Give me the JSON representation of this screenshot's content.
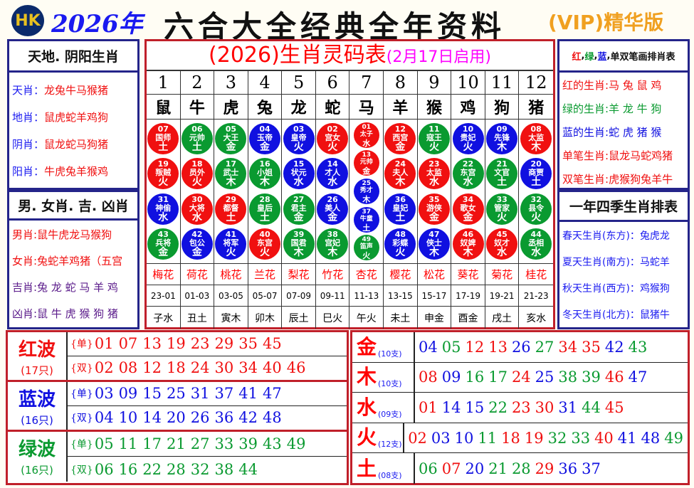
{
  "header": {
    "logo": "HK",
    "year": "2026年",
    "title": "六合大全经典全年资料",
    "vip": "(VIP)精华版"
  },
  "colors": {
    "red": "#f01010",
    "green": "#0a9a30",
    "blue": "#1010e0",
    "border_red": "#c0202a",
    "border_blue": "#24248a"
  },
  "left": {
    "head1": "天地. 阴阳生肖",
    "lines1": [
      {
        "k": "天肖：",
        "v": "龙兔牛马猴猪"
      },
      {
        "k": "地肖：",
        "v": "鼠虎蛇羊鸡狗"
      },
      {
        "k": "阴肖：",
        "v": "鼠龙蛇马狗猪"
      },
      {
        "k": "阳肖：",
        "v": "牛虎兔羊猴鸡"
      }
    ],
    "head2": "男. 女肖. 吉. 凶肖",
    "lines2": [
      {
        "k": "男肖:",
        "v": "鼠牛虎龙马猴狗"
      },
      {
        "k": "女肖:",
        "v": "兔蛇羊鸡猪（五宫"
      },
      {
        "k": "吉肖:",
        "v": "兔 龙 蛇 马 羊 鸡"
      },
      {
        "k": "凶肖:",
        "v": "鼠 牛 虎 猴 狗 猪"
      }
    ]
  },
  "center": {
    "title": "(2026)生肖灵码表",
    "subtitle": "(2月17日启用)",
    "columns": [
      {
        "n": "1",
        "z": "鼠",
        "f": "梅花",
        "t": "23-01",
        "b": "子水",
        "balls": [
          [
            "07",
            "国师",
            "土",
            "r"
          ],
          [
            "19",
            "叛贼",
            "火",
            "r"
          ],
          [
            "31",
            "神偷",
            "水",
            "b"
          ],
          [
            "43",
            "兵将",
            "金",
            "g"
          ]
        ]
      },
      {
        "n": "2",
        "z": "牛",
        "f": "荷花",
        "t": "01-03",
        "b": "丑土",
        "balls": [
          [
            "06",
            "元帅",
            "土",
            "g"
          ],
          [
            "18",
            "员外",
            "火",
            "r"
          ],
          [
            "30",
            "大将",
            "水",
            "r"
          ],
          [
            "42",
            "包公",
            "金",
            "b"
          ]
        ]
      },
      {
        "n": "3",
        "z": "虎",
        "f": "桃花",
        "t": "03-05",
        "b": "寅木",
        "balls": [
          [
            "05",
            "大王",
            "金",
            "g"
          ],
          [
            "17",
            "武士",
            "木",
            "g"
          ],
          [
            "29",
            "都督",
            "土",
            "r"
          ],
          [
            "41",
            "将军",
            "火",
            "b"
          ]
        ]
      },
      {
        "n": "4",
        "z": "兔",
        "f": "兰花",
        "t": "05-07",
        "b": "卯木",
        "balls": [
          [
            "04",
            "玉帝",
            "金",
            "b"
          ],
          [
            "16",
            "小姐",
            "木",
            "g"
          ],
          [
            "28",
            "皇后",
            "土",
            "g"
          ],
          [
            "40",
            "东宫",
            "火",
            "r"
          ]
        ]
      },
      {
        "n": "5",
        "z": "龙",
        "f": "梨花",
        "t": "07-09",
        "b": "辰土",
        "balls": [
          [
            "03",
            "皇帝",
            "火",
            "b"
          ],
          [
            "15",
            "状元",
            "水",
            "b"
          ],
          [
            "27",
            "君主",
            "金",
            "g"
          ],
          [
            "39",
            "国君",
            "木",
            "g"
          ]
        ]
      },
      {
        "n": "6",
        "z": "蛇",
        "f": "竹花",
        "t": "09-11",
        "b": "巳火",
        "balls": [
          [
            "02",
            "宫女",
            "火",
            "r"
          ],
          [
            "14",
            "才人",
            "水",
            "b"
          ],
          [
            "26",
            "美人",
            "金",
            "b"
          ],
          [
            "38",
            "宫妃",
            "木",
            "g"
          ]
        ]
      },
      {
        "n": "7",
        "z": "马",
        "f": "杏花",
        "t": "11-13",
        "b": "午火",
        "balls": [
          [
            "01",
            "太子",
            "水",
            "r"
          ],
          [
            "13",
            "元帅",
            "金",
            "r"
          ],
          [
            "25",
            "秀才",
            "木",
            "b"
          ],
          [
            "37",
            "牛童",
            "土",
            "b"
          ],
          [
            "49",
            "笛声",
            "火",
            "g"
          ]
        ]
      },
      {
        "n": "8",
        "z": "羊",
        "f": "樱花",
        "t": "13-15",
        "b": "未土",
        "balls": [
          [
            "12",
            "西宫",
            "金",
            "r"
          ],
          [
            "24",
            "夫人",
            "木",
            "r"
          ],
          [
            "36",
            "皇妃",
            "土",
            "b"
          ],
          [
            "48",
            "彩蝶",
            "火",
            "b"
          ]
        ]
      },
      {
        "n": "9",
        "z": "猴",
        "f": "松花",
        "t": "15-17",
        "b": "申金",
        "balls": [
          [
            "11",
            "寇王",
            "火",
            "g"
          ],
          [
            "23",
            "太监",
            "水",
            "r"
          ],
          [
            "35",
            "游侠",
            "金",
            "r"
          ],
          [
            "47",
            "侠士",
            "木",
            "b"
          ]
        ]
      },
      {
        "n": "10",
        "z": "鸡",
        "f": "葵花",
        "t": "17-19",
        "b": "酉金",
        "balls": [
          [
            "10",
            "贵妃",
            "火",
            "b"
          ],
          [
            "22",
            "东宫",
            "水",
            "g"
          ],
          [
            "34",
            "歌女",
            "金",
            "r"
          ],
          [
            "46",
            "奴婢",
            "木",
            "r"
          ]
        ]
      },
      {
        "n": "11",
        "z": "狗",
        "f": "菊花",
        "t": "19-21",
        "b": "戌土",
        "balls": [
          [
            "09",
            "先锋",
            "木",
            "b"
          ],
          [
            "21",
            "文官",
            "土",
            "g"
          ],
          [
            "33",
            "管家",
            "火",
            "g"
          ],
          [
            "45",
            "奴才",
            "水",
            "r"
          ]
        ]
      },
      {
        "n": "12",
        "z": "猪",
        "f": "桂花",
        "t": "21-23",
        "b": "亥水",
        "balls": [
          [
            "08",
            "太监",
            "木",
            "r"
          ],
          [
            "20",
            "商贾",
            "土",
            "b"
          ],
          [
            "32",
            "县令",
            "火",
            "g"
          ],
          [
            "44",
            "丞相",
            "水",
            "g"
          ]
        ]
      }
    ]
  },
  "right": {
    "head1": {
      "r": "红",
      "g": "绿",
      "b": "蓝",
      "rest": "单双笔画排肖表"
    },
    "lines1": [
      {
        "k": "红的生肖:",
        "v": "马 兔 鼠 鸡",
        "c": "r"
      },
      {
        "k": "绿的生肖:",
        "v": "羊 龙 牛 狗",
        "c": "g"
      },
      {
        "k": "蓝的生肖:",
        "v": "蛇 虎 猪 猴",
        "c": "b"
      },
      {
        "k": "单笔生肖:",
        "v": "鼠龙马蛇鸡猪",
        "c": "r"
      },
      {
        "k": "双笔生肖:",
        "v": "虎猴狗兔羊牛",
        "c": "r"
      }
    ],
    "head2": "一年四季生肖排表",
    "lines2": [
      {
        "k": "春天生肖(东方)：",
        "v": "兔虎龙"
      },
      {
        "k": "夏天生肖(南方)：",
        "v": "马蛇羊"
      },
      {
        "k": "秋天生肖(西方)：",
        "v": "鸡猴狗"
      },
      {
        "k": "冬天生肖(北方)：",
        "v": "鼠猪牛"
      }
    ]
  },
  "waves": [
    {
      "name": "红波",
      "count": "(17只)",
      "c": "r",
      "odd_label": "{单}",
      "odd": [
        "01",
        "07",
        "13",
        "19",
        "23",
        "29",
        "35",
        "45"
      ],
      "even_label": "{双}",
      "even": [
        "02",
        "08",
        "12",
        "18",
        "24",
        "30",
        "34",
        "40",
        "46"
      ]
    },
    {
      "name": "蓝波",
      "count": "(16只)",
      "c": "b",
      "odd_label": "{单}",
      "odd": [
        "03",
        "09",
        "15",
        "25",
        "31",
        "37",
        "41",
        "47"
      ],
      "even_label": "{双}",
      "even": [
        "04",
        "10",
        "14",
        "20",
        "26",
        "36",
        "42",
        "48"
      ]
    },
    {
      "name": "绿波",
      "count": "(16只)",
      "c": "g",
      "odd_label": "{单}",
      "odd": [
        "05",
        "11",
        "17",
        "21",
        "27",
        "33",
        "39",
        "43",
        "49"
      ],
      "even_label": "{双}",
      "even": [
        "06",
        "16",
        "22",
        "28",
        "32",
        "38",
        "44"
      ]
    }
  ],
  "elements": [
    {
      "name": "金",
      "count": "(10支)",
      "nums": [
        "04",
        "05",
        "12",
        "13",
        "26",
        "27",
        "34",
        "35",
        "42",
        "43"
      ]
    },
    {
      "name": "木",
      "count": "(10支)",
      "nums": [
        "08",
        "09",
        "16",
        "17",
        "24",
        "25",
        "38",
        "39",
        "46",
        "47"
      ]
    },
    {
      "name": "水",
      "count": "(09支)",
      "nums": [
        "01",
        "14",
        "15",
        "22",
        "23",
        "30",
        "31",
        "44",
        "45"
      ]
    },
    {
      "name": "火",
      "count": "(12支)",
      "nums": [
        "02",
        "03",
        "10",
        "11",
        "18",
        "19",
        "32",
        "33",
        "40",
        "41",
        "48",
        "49"
      ]
    },
    {
      "name": "土",
      "count": "(08支)",
      "nums": [
        "06",
        "07",
        "20",
        "21",
        "28",
        "29",
        "36",
        "37"
      ]
    }
  ]
}
